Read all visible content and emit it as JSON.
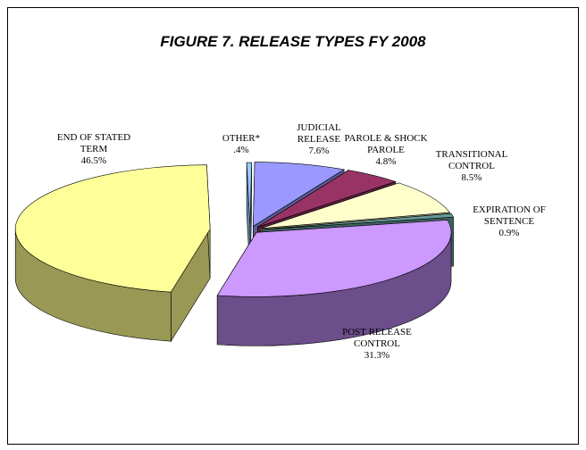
{
  "chart_data": {
    "type": "pie",
    "title": "FIGURE 7. RELEASE TYPES FY 2008",
    "categories": [
      "OTHER*",
      "JUDICIAL\nRELEASE",
      "PAROLE & SHOCK\nPAROLE",
      "TRANSITIONAL\nCONTROL",
      "EXPIRATION OF\nSENTENCE",
      "POST RELEASE\nCONTROL",
      "END OF STATED\nTERM"
    ],
    "values": [
      0.4,
      7.6,
      4.8,
      8.5,
      0.9,
      31.3,
      46.5
    ],
    "value_labels": [
      ".4%",
      "7.6%",
      "4.8%",
      "8.5%",
      "0.9%",
      "31.3%",
      "46.5%"
    ],
    "colors": [
      "#99ccff",
      "#9999ff",
      "#993366",
      "#ffffcc",
      "#669999",
      "#cc99ff",
      "#ffff99"
    ],
    "side_colors": [
      "#6688aa",
      "#5c5c99",
      "#5e1f3f",
      "#a3a37e",
      "#3f6060",
      "#6b4e8a",
      "#999955"
    ]
  }
}
